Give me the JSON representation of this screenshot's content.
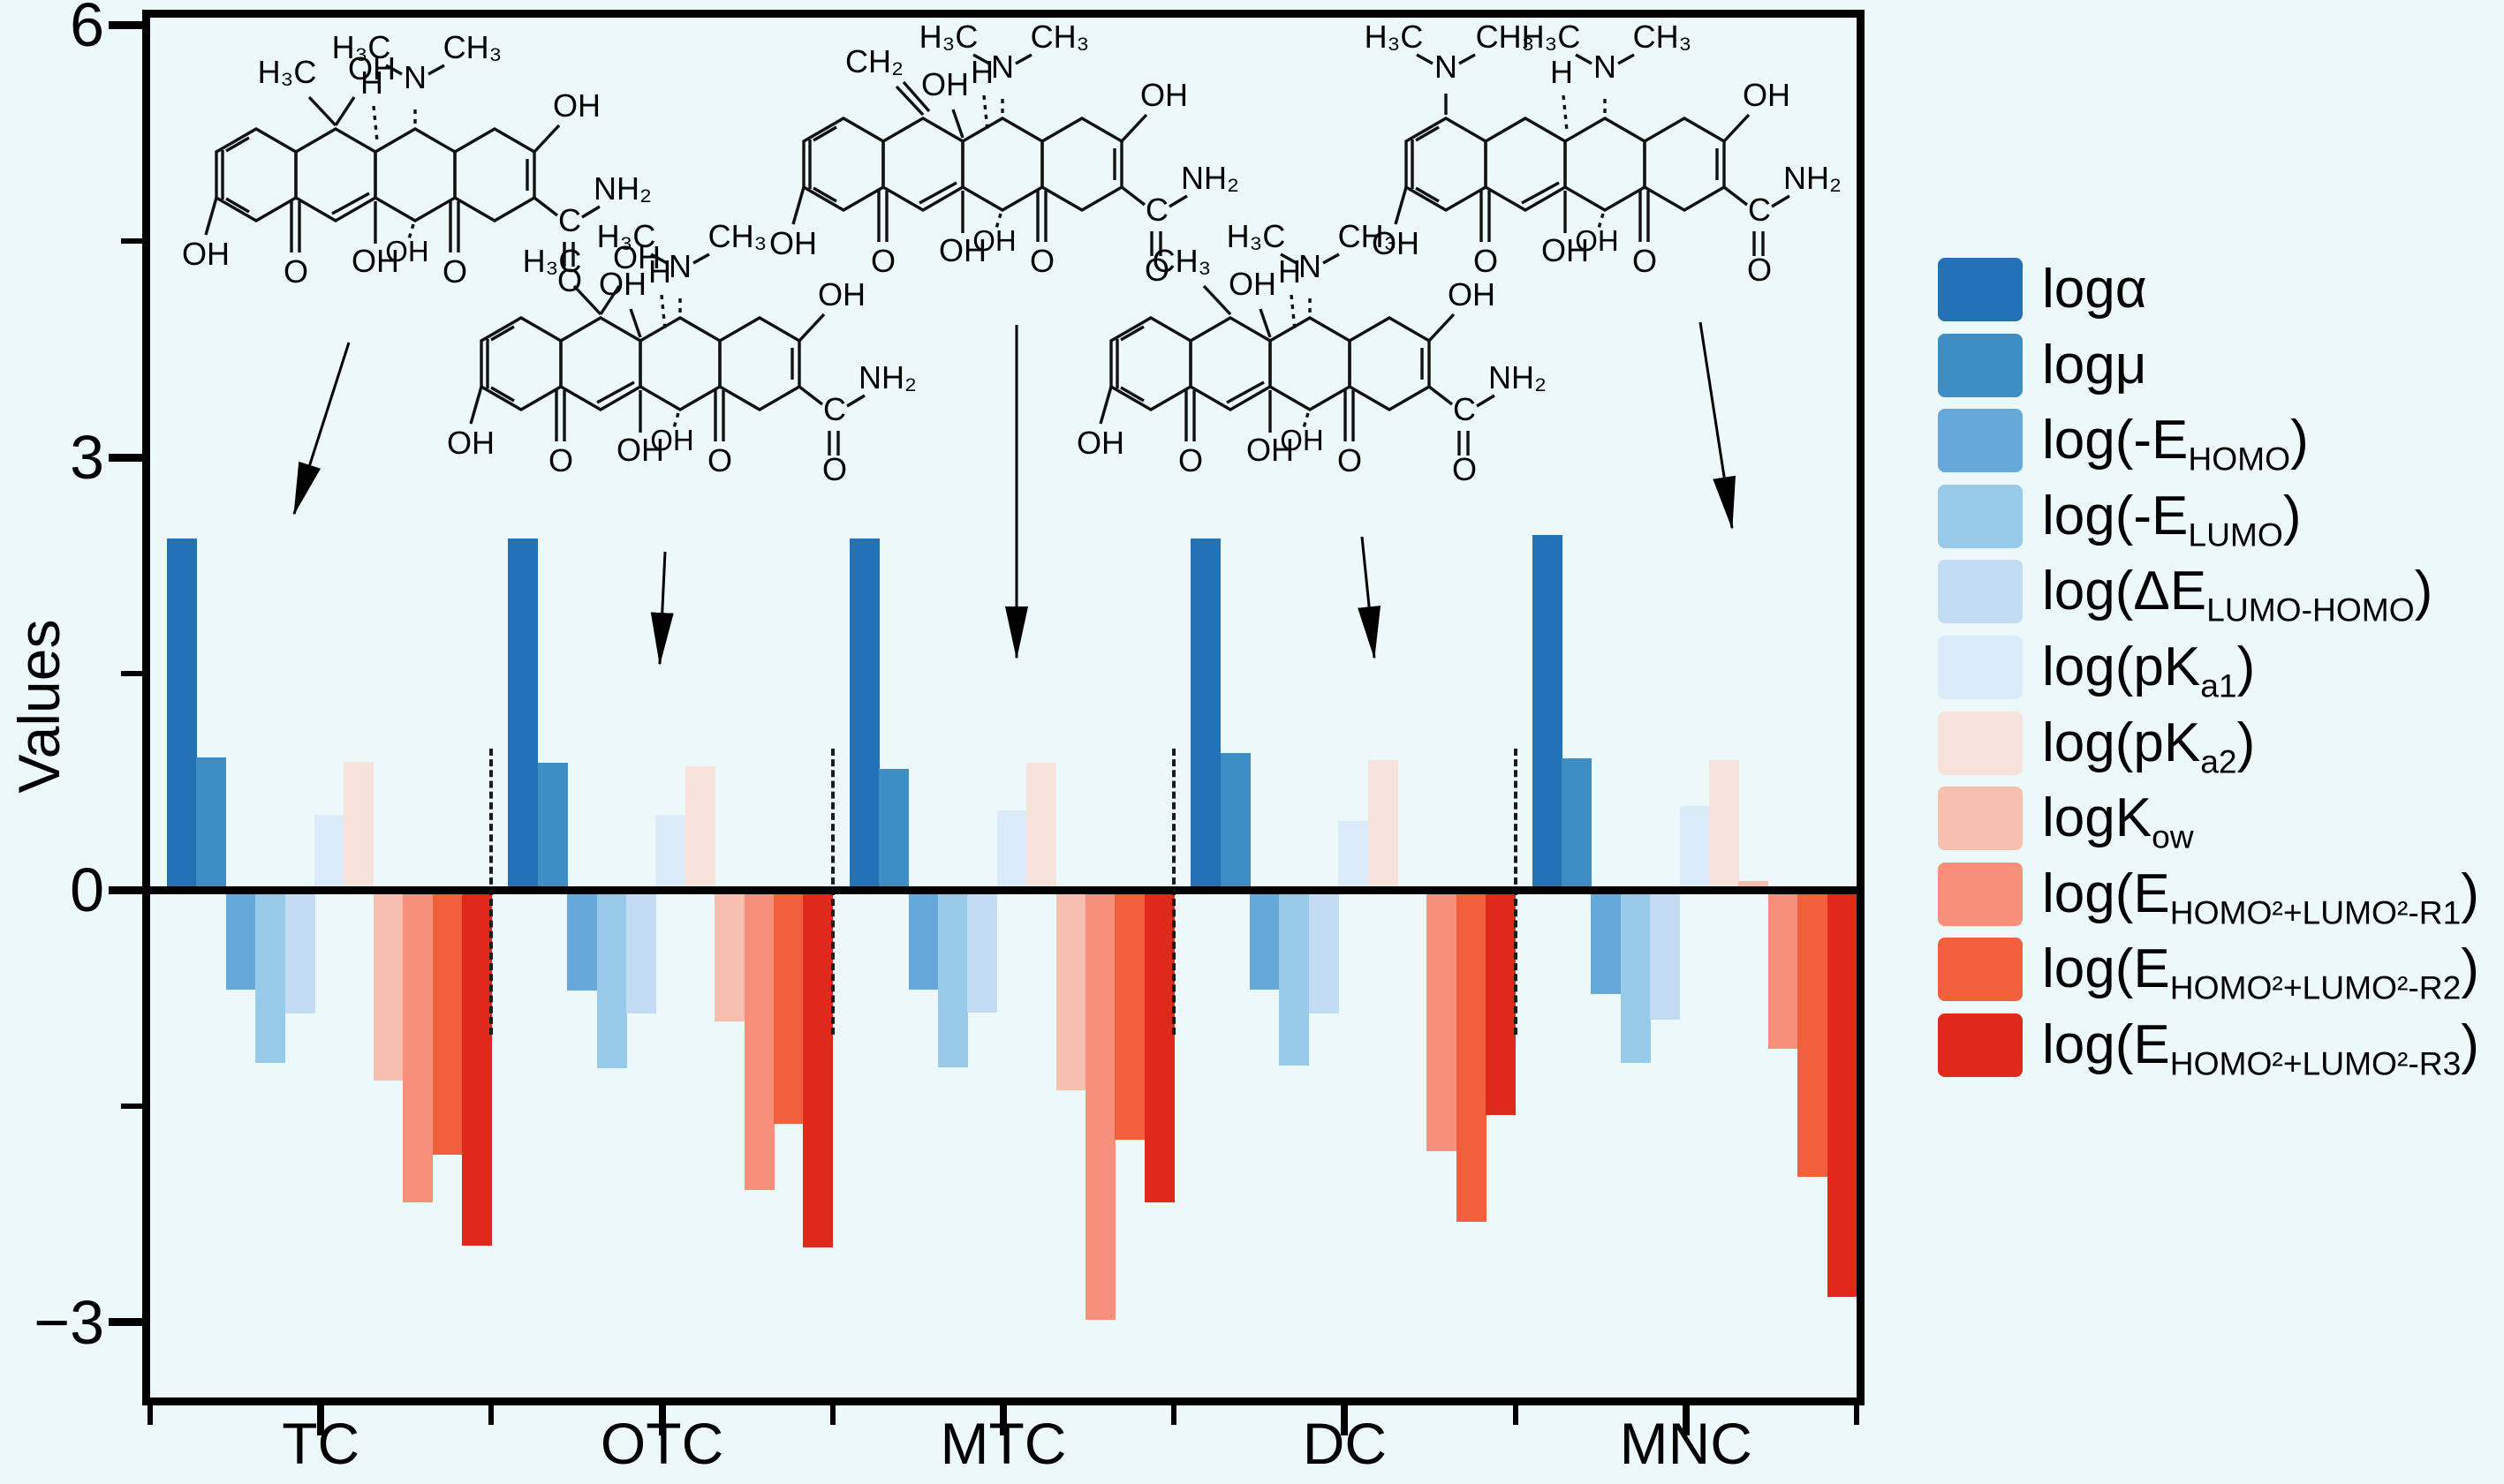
{
  "figure": {
    "background": "#EDF8FA",
    "frame_color": "#000000"
  },
  "y_axis": {
    "title": "Values",
    "ticks": [
      {
        "v": 6,
        "label": "6"
      },
      {
        "v": 3,
        "label": "3"
      },
      {
        "v": 0,
        "label": "0"
      },
      {
        "v": -3,
        "label": "−3"
      }
    ],
    "minor_ticks": [
      4.5,
      1.5,
      -1.5
    ]
  },
  "x_axis": {
    "categories": [
      "TC",
      "OTC",
      "MTC",
      "DC",
      "MNC"
    ]
  },
  "chart_data": {
    "type": "bar",
    "title": "",
    "xlabel": "",
    "ylabel": "Values",
    "categories": [
      "TC",
      "OTC",
      "MTC",
      "DC",
      "MNC"
    ],
    "ylim": [
      -3.5,
      6.05
    ],
    "yticks": [
      6,
      3,
      0,
      -3
    ],
    "grid": false,
    "legend_position": "right",
    "series": [
      {
        "name": "logα",
        "color": "#2272B5",
        "label_parts": {
          "pre": "logα",
          "sub": "",
          "post": ""
        },
        "values": [
          2.44,
          2.44,
          2.44,
          2.44,
          2.46
        ]
      },
      {
        "name": "logμ",
        "color": "#3D8EC4",
        "label_parts": {
          "pre": "logμ",
          "sub": "",
          "post": ""
        },
        "values": [
          0.92,
          0.88,
          0.84,
          0.95,
          0.91
        ]
      },
      {
        "name": "log(-E_HOMO)",
        "color": "#66A9D8",
        "label_parts": {
          "pre": "log(-E",
          "sub": "HOMO",
          "post": ")"
        },
        "values": [
          -0.69,
          -0.7,
          -0.69,
          -0.69,
          -0.72
        ]
      },
      {
        "name": "log(-E_LUMO)",
        "color": "#97CBE9",
        "label_parts": {
          "pre": "log(-E",
          "sub": "LUMO",
          "post": ")"
        },
        "values": [
          -1.2,
          -1.24,
          -1.23,
          -1.22,
          -1.2
        ]
      },
      {
        "name": "log(ΔE_LUMO-HOMO)",
        "color": "#C3DCF3",
        "label_parts": {
          "pre": "log(ΔE",
          "sub": "LUMO-HOMO",
          "post": ")"
        },
        "values": [
          -0.86,
          -0.86,
          -0.85,
          -0.86,
          -0.9
        ]
      },
      {
        "name": "log(pKa1)",
        "color": "#DCEBF9",
        "label_parts": {
          "pre": "log(pK",
          "sub": "a1",
          "post": ")"
        },
        "values": [
          0.52,
          0.52,
          0.55,
          0.48,
          0.58
        ]
      },
      {
        "name": "log(pKa2)",
        "color": "#F8E3DB",
        "label_parts": {
          "pre": "log(pK",
          "sub": "a2",
          "post": ")"
        },
        "values": [
          0.89,
          0.86,
          0.88,
          0.9,
          0.9
        ]
      },
      {
        "name": "logKow",
        "color": "#F7BFAD",
        "label_parts": {
          "pre": "logK",
          "sub": "ow",
          "post": ""
        },
        "values": [
          -1.32,
          -0.91,
          -1.39,
          -0.03,
          0.06
        ]
      },
      {
        "name": "log(E_HOMO²+LUMO²-R1)",
        "color": "#F6907A",
        "label_parts": {
          "pre": "log(E",
          "sub": "HOMO²+LUMO²-R1",
          "post": ")"
        },
        "values": [
          -2.17,
          -2.08,
          -2.98,
          -1.81,
          -1.1
        ]
      },
      {
        "name": "log(E_HOMO²+LUMO²-R2)",
        "color": "#F25F3C",
        "label_parts": {
          "pre": "log(E",
          "sub": "HOMO²+LUMO²-R2",
          "post": ")"
        },
        "values": [
          -1.84,
          -1.62,
          -1.73,
          -2.3,
          -1.99
        ]
      },
      {
        "name": "log(E_HOMO²+LUMO²-R3)",
        "color": "#DF2A1B",
        "label_parts": {
          "pre": "log(E",
          "sub": "HOMO²+LUMO²-R3",
          "post": ")"
        },
        "values": [
          -2.47,
          -2.48,
          -2.17,
          -1.56,
          -2.82
        ]
      }
    ]
  },
  "molecules": [
    {
      "name": "TC",
      "labels": {
        "v1": "H₃C",
        "v2": "OH",
        "nl": "H₃C",
        "nr": "CH₃",
        "n": "N",
        "h": "H",
        "ohEnol": "OH",
        "amideC": "C",
        "amideN": "NH₂",
        "amideO": "O",
        "b1": "OH",
        "b2": "O",
        "b3": "OH",
        "b4": "OH",
        "b5": "O"
      }
    },
    {
      "name": "OTC",
      "labels": {
        "v1": "H₃C",
        "v2": "OH",
        "v3": "OH",
        "nl": "H₃C",
        "nr": "CH₃",
        "n": "N",
        "h": "H",
        "ohEnol": "OH",
        "amideC": "C",
        "amideN": "NH₂",
        "amideO": "O",
        "b1": "OH",
        "b2": "O",
        "b3": "OH",
        "b4": "OH",
        "b5": "O"
      }
    },
    {
      "name": "MTC",
      "labels": {
        "v1": "CH₂",
        "v3": "OH",
        "nl": "H₃C",
        "nr": "CH₃",
        "n": "N",
        "h": "H",
        "ohEnol": "OH",
        "amideC": "C",
        "amideN": "NH₂",
        "amideO": "O",
        "b1": "OH",
        "b2": "O",
        "b3": "OH",
        "b4": "OH",
        "b5": "O"
      }
    },
    {
      "name": "DC",
      "labels": {
        "v1": "CH₃",
        "v3": "OH",
        "nl": "H₃C",
        "nr": "CH₃",
        "n": "N",
        "h": "H",
        "ohEnol": "OH",
        "amideC": "C",
        "amideN": "NH₂",
        "amideO": "O",
        "b1": "OH",
        "b2": "O",
        "b3": "OH",
        "b4": "OH",
        "b5": "O"
      }
    },
    {
      "name": "MNC",
      "labels": {
        "aroNL": "H₃C",
        "aroNR": "CH₃",
        "aroN": "N",
        "nl": "H₃C",
        "nr": "CH₃",
        "n": "N",
        "h": "H",
        "ohEnol": "OH",
        "amideC": "C",
        "amideN": "NH₂",
        "amideO": "O",
        "b1": "OH",
        "b2": "O",
        "b3": "OH",
        "b4": "OH",
        "b5": "O"
      }
    }
  ]
}
